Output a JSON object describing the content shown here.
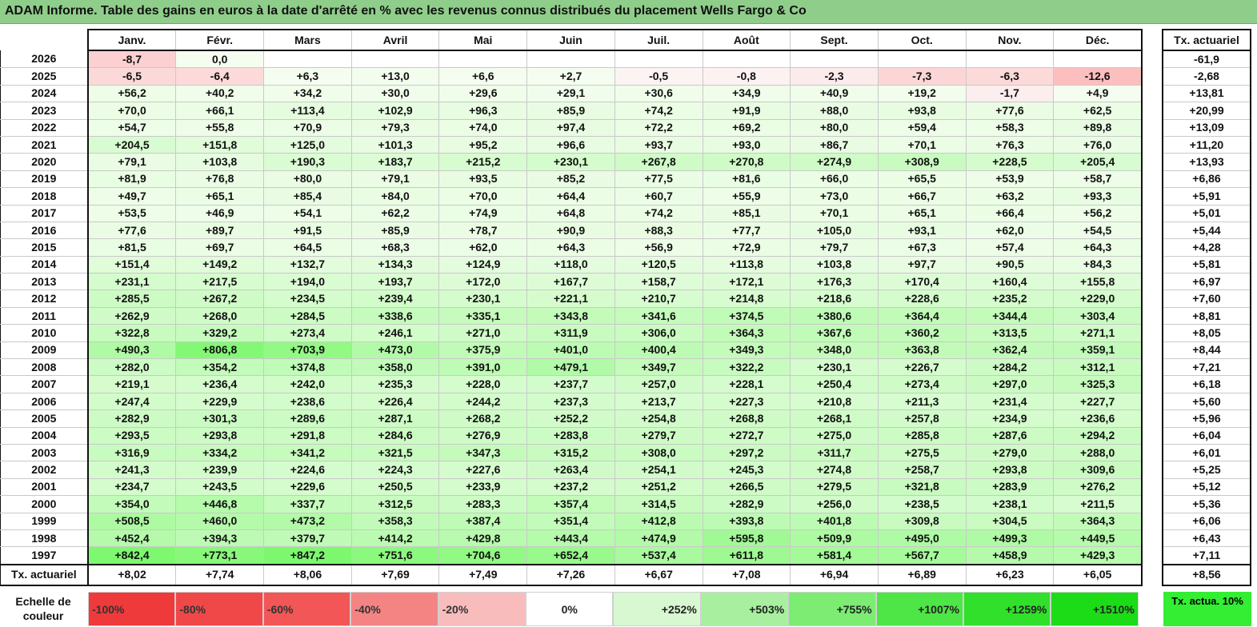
{
  "title": "ADAM Informe. Table des gains en euros à la date d'arrêté en % avec les revenus connus distribués du placement Wells Fargo & Co",
  "months": [
    "Janv.",
    "Févr.",
    "Mars",
    "Avril",
    "Mai",
    "Juin",
    "Juil.",
    "Août",
    "Sept.",
    "Oct.",
    "Nov.",
    "Déc."
  ],
  "tx_header": "Tx. actuariel",
  "rows": [
    {
      "year": "2026",
      "cells": [
        "-8,7",
        "0,0",
        "",
        "",
        "",
        "",
        "",
        "",
        "",
        "",
        "",
        ""
      ],
      "tx": "-61,9"
    },
    {
      "year": "2025",
      "cells": [
        "-6,5",
        "-6,4",
        "+6,3",
        "+13,0",
        "+6,6",
        "+2,7",
        "-0,5",
        "-0,8",
        "-2,3",
        "-7,3",
        "-6,3",
        "-12,6"
      ],
      "tx": "-2,68"
    },
    {
      "year": "2024",
      "cells": [
        "+56,2",
        "+40,2",
        "+34,2",
        "+30,0",
        "+29,6",
        "+29,1",
        "+30,6",
        "+34,9",
        "+40,9",
        "+19,2",
        "-1,7",
        "+4,9"
      ],
      "tx": "+13,81"
    },
    {
      "year": "2023",
      "cells": [
        "+70,0",
        "+66,1",
        "+113,4",
        "+102,9",
        "+96,3",
        "+85,9",
        "+74,2",
        "+91,9",
        "+88,0",
        "+93,8",
        "+77,6",
        "+62,5"
      ],
      "tx": "+20,99"
    },
    {
      "year": "2022",
      "cells": [
        "+54,7",
        "+55,8",
        "+70,9",
        "+79,3",
        "+74,0",
        "+97,4",
        "+72,2",
        "+69,2",
        "+80,0",
        "+59,4",
        "+58,3",
        "+89,8"
      ],
      "tx": "+13,09"
    },
    {
      "year": "2021",
      "cells": [
        "+204,5",
        "+151,8",
        "+125,0",
        "+101,3",
        "+95,2",
        "+96,6",
        "+93,7",
        "+93,0",
        "+86,7",
        "+70,1",
        "+76,3",
        "+76,0"
      ],
      "tx": "+11,20"
    },
    {
      "year": "2020",
      "cells": [
        "+79,1",
        "+103,8",
        "+190,3",
        "+183,7",
        "+215,2",
        "+230,1",
        "+267,8",
        "+270,8",
        "+274,9",
        "+308,9",
        "+228,5",
        "+205,4"
      ],
      "tx": "+13,93"
    },
    {
      "year": "2019",
      "cells": [
        "+81,9",
        "+76,8",
        "+80,0",
        "+79,1",
        "+93,5",
        "+85,2",
        "+77,5",
        "+81,6",
        "+66,0",
        "+65,5",
        "+53,9",
        "+58,7"
      ],
      "tx": "+6,86"
    },
    {
      "year": "2018",
      "cells": [
        "+49,7",
        "+65,1",
        "+85,4",
        "+84,0",
        "+70,0",
        "+64,4",
        "+60,7",
        "+55,9",
        "+73,0",
        "+66,7",
        "+63,2",
        "+93,3"
      ],
      "tx": "+5,91"
    },
    {
      "year": "2017",
      "cells": [
        "+53,5",
        "+46,9",
        "+54,1",
        "+62,2",
        "+74,9",
        "+64,8",
        "+74,2",
        "+85,1",
        "+70,1",
        "+65,1",
        "+66,4",
        "+56,2"
      ],
      "tx": "+5,01"
    },
    {
      "year": "2016",
      "cells": [
        "+77,6",
        "+89,7",
        "+91,5",
        "+85,9",
        "+78,7",
        "+90,9",
        "+88,3",
        "+77,7",
        "+105,0",
        "+93,1",
        "+62,0",
        "+54,5"
      ],
      "tx": "+5,44"
    },
    {
      "year": "2015",
      "cells": [
        "+81,5",
        "+69,7",
        "+64,5",
        "+68,3",
        "+62,0",
        "+64,3",
        "+56,9",
        "+72,9",
        "+79,7",
        "+67,3",
        "+57,4",
        "+64,3"
      ],
      "tx": "+4,28"
    },
    {
      "year": "2014",
      "cells": [
        "+151,4",
        "+149,2",
        "+132,7",
        "+134,3",
        "+124,9",
        "+118,0",
        "+120,5",
        "+113,8",
        "+103,8",
        "+97,7",
        "+90,5",
        "+84,3"
      ],
      "tx": "+5,81"
    },
    {
      "year": "2013",
      "cells": [
        "+231,1",
        "+217,5",
        "+194,0",
        "+193,7",
        "+172,0",
        "+167,7",
        "+158,7",
        "+172,1",
        "+176,3",
        "+170,4",
        "+160,4",
        "+155,8"
      ],
      "tx": "+6,97"
    },
    {
      "year": "2012",
      "cells": [
        "+285,5",
        "+267,2",
        "+234,5",
        "+239,4",
        "+230,1",
        "+221,1",
        "+210,7",
        "+214,8",
        "+218,6",
        "+228,6",
        "+235,2",
        "+229,0"
      ],
      "tx": "+7,60"
    },
    {
      "year": "2011",
      "cells": [
        "+262,9",
        "+268,0",
        "+284,5",
        "+338,6",
        "+335,1",
        "+343,8",
        "+341,6",
        "+374,5",
        "+380,6",
        "+364,4",
        "+344,4",
        "+303,4"
      ],
      "tx": "+8,81"
    },
    {
      "year": "2010",
      "cells": [
        "+322,8",
        "+329,2",
        "+273,4",
        "+246,1",
        "+271,0",
        "+311,9",
        "+306,0",
        "+364,3",
        "+367,6",
        "+360,2",
        "+313,5",
        "+271,1"
      ],
      "tx": "+8,05"
    },
    {
      "year": "2009",
      "cells": [
        "+490,3",
        "+806,8",
        "+703,9",
        "+473,0",
        "+375,9",
        "+401,0",
        "+400,4",
        "+349,3",
        "+348,0",
        "+363,8",
        "+362,4",
        "+359,1"
      ],
      "tx": "+8,44"
    },
    {
      "year": "2008",
      "cells": [
        "+282,0",
        "+354,2",
        "+374,8",
        "+358,0",
        "+391,0",
        "+479,1",
        "+349,7",
        "+322,2",
        "+230,1",
        "+226,7",
        "+284,2",
        "+312,1"
      ],
      "tx": "+7,21"
    },
    {
      "year": "2007",
      "cells": [
        "+219,1",
        "+236,4",
        "+242,0",
        "+235,3",
        "+228,0",
        "+237,7",
        "+257,0",
        "+228,1",
        "+250,4",
        "+273,4",
        "+297,0",
        "+325,3"
      ],
      "tx": "+6,18"
    },
    {
      "year": "2006",
      "cells": [
        "+247,4",
        "+229,9",
        "+238,6",
        "+226,4",
        "+244,2",
        "+237,3",
        "+213,7",
        "+227,3",
        "+210,8",
        "+211,3",
        "+231,4",
        "+227,7"
      ],
      "tx": "+5,60"
    },
    {
      "year": "2005",
      "cells": [
        "+282,9",
        "+301,3",
        "+289,6",
        "+287,1",
        "+268,2",
        "+252,2",
        "+254,8",
        "+268,8",
        "+268,1",
        "+257,8",
        "+234,9",
        "+236,6"
      ],
      "tx": "+5,96"
    },
    {
      "year": "2004",
      "cells": [
        "+293,5",
        "+293,8",
        "+291,8",
        "+284,6",
        "+276,9",
        "+283,8",
        "+279,7",
        "+272,7",
        "+275,0",
        "+285,8",
        "+287,6",
        "+294,2"
      ],
      "tx": "+6,04"
    },
    {
      "year": "2003",
      "cells": [
        "+316,9",
        "+334,2",
        "+341,2",
        "+321,5",
        "+347,3",
        "+315,2",
        "+308,0",
        "+297,2",
        "+311,7",
        "+275,5",
        "+279,0",
        "+288,0"
      ],
      "tx": "+6,01"
    },
    {
      "year": "2002",
      "cells": [
        "+241,3",
        "+239,9",
        "+224,6",
        "+224,3",
        "+227,6",
        "+263,4",
        "+254,1",
        "+245,3",
        "+274,8",
        "+258,7",
        "+293,8",
        "+309,6"
      ],
      "tx": "+5,25"
    },
    {
      "year": "2001",
      "cells": [
        "+234,7",
        "+243,5",
        "+229,6",
        "+250,5",
        "+233,9",
        "+237,2",
        "+251,2",
        "+266,5",
        "+279,5",
        "+321,8",
        "+283,9",
        "+276,2"
      ],
      "tx": "+5,12"
    },
    {
      "year": "2000",
      "cells": [
        "+354,0",
        "+446,8",
        "+337,7",
        "+312,5",
        "+283,3",
        "+357,4",
        "+314,5",
        "+282,9",
        "+256,0",
        "+238,5",
        "+238,1",
        "+211,5"
      ],
      "tx": "+5,36"
    },
    {
      "year": "1999",
      "cells": [
        "+508,5",
        "+460,0",
        "+473,2",
        "+358,3",
        "+387,4",
        "+351,4",
        "+412,8",
        "+393,8",
        "+401,8",
        "+309,8",
        "+304,5",
        "+364,3"
      ],
      "tx": "+6,06"
    },
    {
      "year": "1998",
      "cells": [
        "+452,4",
        "+394,3",
        "+379,7",
        "+414,2",
        "+429,8",
        "+443,4",
        "+474,9",
        "+595,8",
        "+509,9",
        "+495,0",
        "+499,3",
        "+449,5"
      ],
      "tx": "+6,43"
    },
    {
      "year": "1997",
      "cells": [
        "+842,4",
        "+773,1",
        "+847,2",
        "+751,6",
        "+704,6",
        "+652,4",
        "+537,4",
        "+611,8",
        "+581,4",
        "+567,7",
        "+458,9",
        "+429,3"
      ],
      "tx": "+7,11"
    }
  ],
  "total_row": {
    "label": "Tx. actuariel",
    "cells": [
      "+8,02",
      "+7,74",
      "+8,06",
      "+7,69",
      "+7,49",
      "+7,26",
      "+6,67",
      "+7,08",
      "+6,94",
      "+6,89",
      "+6,23",
      "+6,05"
    ],
    "tx": "+8,56"
  },
  "legend": {
    "label": "Echelle de couleur",
    "items": [
      {
        "text": "-100%",
        "color": "#ee3a3a",
        "kind": "neg"
      },
      {
        "text": "-80%",
        "color": "#f04848",
        "kind": "neg"
      },
      {
        "text": "-60%",
        "color": "#f25656",
        "kind": "neg"
      },
      {
        "text": "-40%",
        "color": "#f48484",
        "kind": "neg"
      },
      {
        "text": "-20%",
        "color": "#f9bcbc",
        "kind": "neg"
      },
      {
        "text": "0%",
        "color": "#ffffff",
        "kind": "zero"
      },
      {
        "text": "+252%",
        "color": "#d8f8d2",
        "kind": "pos"
      },
      {
        "text": "+503%",
        "color": "#a8f0a0",
        "kind": "pos"
      },
      {
        "text": "+755%",
        "color": "#7cec72",
        "kind": "pos"
      },
      {
        "text": "+1007%",
        "color": "#4ee646",
        "kind": "pos"
      },
      {
        "text": "+1259%",
        "color": "#30e02a",
        "kind": "pos"
      },
      {
        "text": "+1510%",
        "color": "#1cdc18",
        "kind": "pos"
      }
    ],
    "tx_label": "Tx. actua. 10%",
    "tx_color": "#33ee33"
  }
}
